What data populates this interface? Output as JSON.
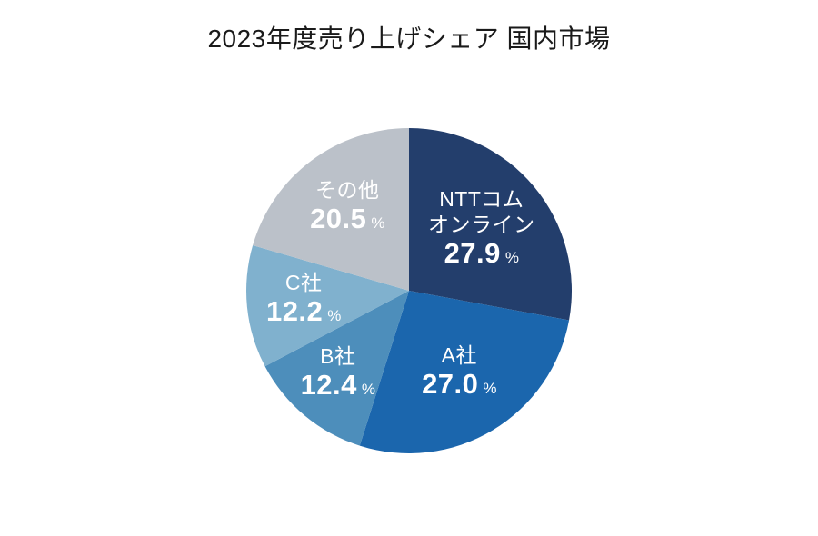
{
  "title": "2023年度売り上げシェア 国内市場",
  "chart_data": {
    "type": "pie",
    "title": "2023年度売り上げシェア 国内市場",
    "background": "#ffffff",
    "start_angle_deg": 0,
    "direction": "clockwise",
    "total": 100,
    "unit": "%",
    "slices": [
      {
        "label": "NTTコムオンライン",
        "label_lines": [
          "NTTコム",
          "オンライン"
        ],
        "value": 27.9,
        "value_display": "27.9",
        "unit": "%",
        "color": "#233e6c",
        "text_color": "#ffffff"
      },
      {
        "label": "A社",
        "label_lines": [
          "A社"
        ],
        "value": 27.0,
        "value_display": "27.0",
        "unit": "%",
        "color": "#1b66ad",
        "text_color": "#ffffff"
      },
      {
        "label": "B社",
        "label_lines": [
          "B社"
        ],
        "value": 12.4,
        "value_display": "12.4",
        "unit": "%",
        "color": "#4d8ebb",
        "text_color": "#ffffff"
      },
      {
        "label": "C社",
        "label_lines": [
          "C社"
        ],
        "value": 12.2,
        "value_display": "12.2",
        "unit": "%",
        "color": "#80b1ce",
        "text_color": "#ffffff"
      },
      {
        "label": "その他",
        "label_lines": [
          "その他"
        ],
        "value": 20.5,
        "value_display": "20.5",
        "unit": "%",
        "color": "#bbc1c9",
        "text_color": "#ffffff"
      }
    ]
  }
}
